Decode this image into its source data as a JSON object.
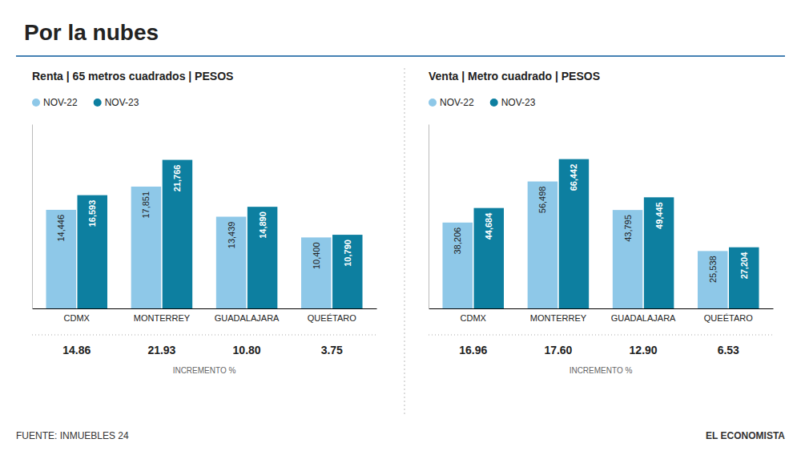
{
  "chart_data": [
    {
      "type": "bar",
      "title": "Por la nubes",
      "subtitle": "Renta | 65 metros cuadrados | PESOS",
      "categories": [
        "CDMX",
        "MONTERREY",
        "GUADALAJARA",
        "QUEÉTARO"
      ],
      "series": [
        {
          "name": "NOV-22",
          "color": "#8EC8E8",
          "values": [
            14446,
            17851,
            13439,
            10400
          ],
          "value_labels": [
            "14,446",
            "17,851",
            "13,439",
            "10,400"
          ]
        },
        {
          "name": "NOV-23",
          "color": "#0D7FA0",
          "values": [
            16593,
            21766,
            14890,
            10790
          ],
          "value_labels": [
            "16,593",
            "21,766",
            "14,890",
            "10,790"
          ]
        }
      ],
      "ylim": [
        0,
        27000
      ],
      "data_labels": true,
      "tick_labels": "x",
      "grid": false,
      "legend": "top-left",
      "incremento": {
        "label": "INCREMENTO %",
        "values": [
          14.86,
          21.93,
          10.8,
          3.75
        ],
        "value_labels": [
          "14.86",
          "21.93",
          "10.80",
          "3.75"
        ]
      },
      "annotations": [
        "FUENTE: INMUEBLES 24",
        "EL ECONOMISTA"
      ]
    },
    {
      "type": "bar",
      "subtitle": "Venta | Metro cuadrado | PESOS",
      "categories": [
        "CDMX",
        "MONTERREY",
        "GUADALAJARA",
        "QUEÉTARO"
      ],
      "series": [
        {
          "name": "NOV-22",
          "color": "#8EC8E8",
          "values": [
            38206,
            56498,
            43795,
            25538
          ],
          "value_labels": [
            "38,206",
            "56,498",
            "43,795",
            "25,538"
          ]
        },
        {
          "name": "NOV-23",
          "color": "#0D7FA0",
          "values": [
            44684,
            66442,
            49445,
            27204
          ],
          "value_labels": [
            "44,684",
            "66,442",
            "49,445",
            "27,204"
          ]
        }
      ],
      "ylim": [
        0,
        82000
      ],
      "data_labels": true,
      "tick_labels": "x",
      "grid": false,
      "legend": "top-left",
      "incremento": {
        "label": "INCREMENTO %",
        "values": [
          16.96,
          17.6,
          12.9,
          6.53
        ],
        "value_labels": [
          "16.96",
          "17.60",
          "12.90",
          "6.53"
        ]
      }
    }
  ]
}
